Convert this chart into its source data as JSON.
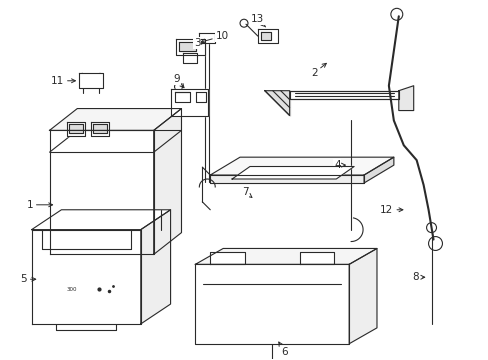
{
  "bg_color": "#ffffff",
  "line_color": "#2a2a2a",
  "figsize": [
    4.89,
    3.6
  ],
  "dpi": 100,
  "font_size": 7.5
}
